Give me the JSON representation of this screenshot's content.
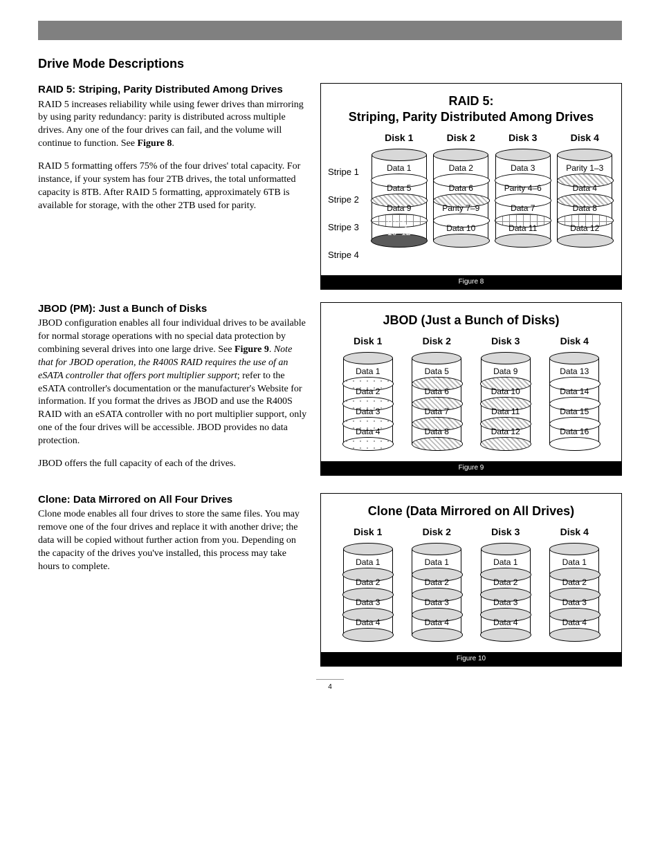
{
  "page_number": "4",
  "main_heading": "Drive Mode Descriptions",
  "raid5": {
    "heading": "RAID 5: Striping, Parity Distributed Among Drives",
    "p1": "RAID 5 increases reliability while using fewer drives than mirroring by using parity redundancy: parity is distributed across multiple drives. Any one of the four drives can fail, and the volume will continue to function. See ",
    "p1_ref": "Figure 8",
    "p1_end": ".",
    "p2": "RAID 5 formatting offers 75% of the four drives' total capacity. For instance, if your system has four 2TB drives, the total unformatted capacity is 8TB. After RAID 5 formatting, approximately 6TB is available for storage, with the other 2TB used for parity.",
    "fig_title_l1": "RAID 5:",
    "fig_title_l2": "Striping, Parity Distributed Among Drives",
    "fig_caption": "Figure 8",
    "stripe_labels": [
      "Stripe 1",
      "Stripe 2",
      "Stripe 3",
      "Stripe 4"
    ],
    "disk_headers": [
      "Disk 1",
      "Disk 2",
      "Disk 3",
      "Disk 4"
    ],
    "cells": [
      [
        {
          "t": "Data 1",
          "s": ""
        },
        {
          "t": "Data 2",
          "s": ""
        },
        {
          "t": "Data 3",
          "s": ""
        },
        {
          "t": "Parity 1–3",
          "s": "hatch"
        }
      ],
      [
        {
          "t": "Data 5",
          "s": "hatch"
        },
        {
          "t": "Data 6",
          "s": "hatch"
        },
        {
          "t": "Parity 4–6",
          "s": ""
        },
        {
          "t": "Data 4",
          "s": "hatch"
        }
      ],
      [
        {
          "t": "Data 9",
          "s": "plus"
        },
        {
          "t": "Parity 7–9",
          "s": ""
        },
        {
          "t": "Data 7",
          "s": "plus"
        },
        {
          "t": "Data 8",
          "s": "plus"
        }
      ],
      [
        {
          "t": "Parity 10–12",
          "s": "dark"
        },
        {
          "t": "Data 10",
          "s": "grey"
        },
        {
          "t": "Data 11",
          "s": "grey"
        },
        {
          "t": "Data 12",
          "s": "grey"
        }
      ]
    ]
  },
  "jbod": {
    "heading": "JBOD (PM): Just a Bunch of Disks",
    "p1a": "JBOD configuration enables all four individual drives to be available for normal storage operations with no special data protection by combining several drives into one large drive. See ",
    "p1_ref": "Figure 9",
    "p1b": ". ",
    "p1_italic": "Note that for JBOD operation, the R400S RAID requires the use of an eSATA controller that offers port multiplier support",
    "p1c": "; refer to the eSATA controller's documentation or the manufacturer's Website for information. If you format the drives as JBOD and use the R400S RAID with an eSATA controller with no port multiplier support, only one of the four drives will be accessible. JBOD provides no data protection.",
    "p2": "JBOD offers the full capacity of each of the drives.",
    "fig_title": "JBOD (Just a Bunch of Disks)",
    "fig_caption": "Figure 9",
    "disk_headers": [
      "Disk 1",
      "Disk 2",
      "Disk 3",
      "Disk 4"
    ],
    "cells": [
      [
        {
          "t": "Data 1",
          "s": "dots"
        },
        {
          "t": "Data 5",
          "s": "hatch"
        },
        {
          "t": "Data 9",
          "s": "cross"
        },
        {
          "t": "Data 13",
          "s": ""
        }
      ],
      [
        {
          "t": "Data 2",
          "s": "dots"
        },
        {
          "t": "Data 6",
          "s": "hatch"
        },
        {
          "t": "Data 10",
          "s": "cross"
        },
        {
          "t": "Data 14",
          "s": ""
        }
      ],
      [
        {
          "t": "Data 3",
          "s": "dots"
        },
        {
          "t": "Data 7",
          "s": "hatch"
        },
        {
          "t": "Data 11",
          "s": "cross"
        },
        {
          "t": "Data 15",
          "s": ""
        }
      ],
      [
        {
          "t": "Data 4",
          "s": "dots"
        },
        {
          "t": "Data 8",
          "s": "hatch"
        },
        {
          "t": "Data 12",
          "s": "cross"
        },
        {
          "t": "Data 16",
          "s": ""
        }
      ]
    ]
  },
  "clone": {
    "heading": "Clone: Data Mirrored on All Four Drives",
    "p1": "Clone mode enables all four drives to store the same files. You may remove one of the four drives and replace it with another drive; the data will be copied without further action from you. Depending on the capacity of the drives you've installed, this process may take hours to complete.",
    "fig_title": "Clone (Data Mirrored on All Drives)",
    "fig_caption": "Figure 10",
    "disk_headers": [
      "Disk 1",
      "Disk 2",
      "Disk 3",
      "Disk 4"
    ],
    "cells": [
      [
        {
          "t": "Data 1",
          "s": "grey"
        },
        {
          "t": "Data 1",
          "s": "grey"
        },
        {
          "t": "Data 1",
          "s": "grey"
        },
        {
          "t": "Data 1",
          "s": "grey"
        }
      ],
      [
        {
          "t": "Data 2",
          "s": "grey"
        },
        {
          "t": "Data 2",
          "s": "grey"
        },
        {
          "t": "Data 2",
          "s": "grey"
        },
        {
          "t": "Data 2",
          "s": "grey"
        }
      ],
      [
        {
          "t": "Data 3",
          "s": "grey"
        },
        {
          "t": "Data 3",
          "s": "grey"
        },
        {
          "t": "Data 3",
          "s": "grey"
        },
        {
          "t": "Data 3",
          "s": "grey"
        }
      ],
      [
        {
          "t": "Data 4",
          "s": "grey"
        },
        {
          "t": "Data 4",
          "s": "grey"
        },
        {
          "t": "Data 4",
          "s": "grey"
        },
        {
          "t": "Data 4",
          "s": "grey"
        }
      ]
    ]
  }
}
